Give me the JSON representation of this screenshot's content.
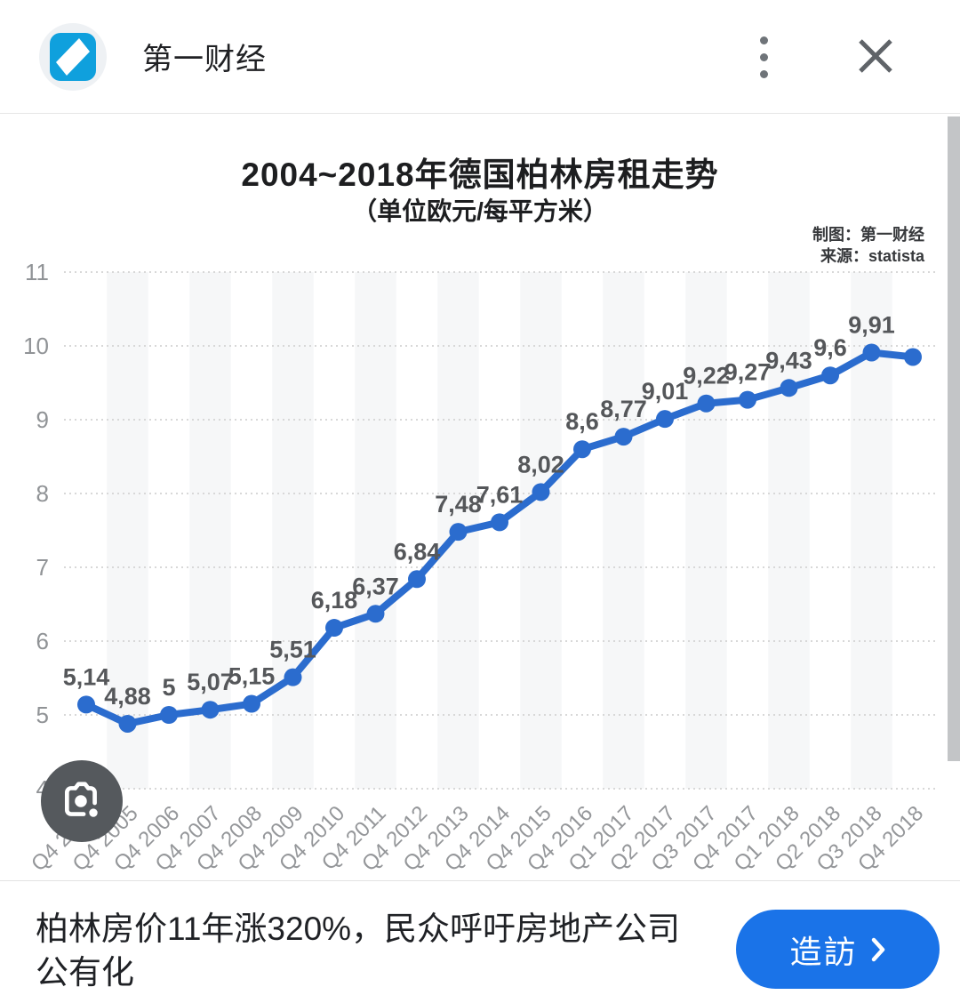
{
  "header": {
    "source_name": "第一财经"
  },
  "chart": {
    "title": "2004~2018年德国柏林房租走势",
    "subtitle": "（单位欧元/每平方米）",
    "credit_line1": "制图：第一财经",
    "credit_line2": "来源：statista"
  },
  "chart_data": {
    "type": "line",
    "title": "2004~2018年德国柏林房租走势",
    "subtitle": "（单位欧元/每平方米）",
    "categories": [
      "Q4 2004",
      "Q4 2005",
      "Q4 2006",
      "Q4 2007",
      "Q4 2008",
      "Q4 2009",
      "Q4 2010",
      "Q4 2011",
      "Q4 2012",
      "Q4 2013",
      "Q4 2014",
      "Q4 2015",
      "Q4 2016",
      "Q1 2017",
      "Q2 2017",
      "Q3 2017",
      "Q4 2017",
      "Q1 2018",
      "Q2 2018",
      "Q3 2018",
      "Q4 2018"
    ],
    "values": [
      5.14,
      4.88,
      5.0,
      5.07,
      5.15,
      5.51,
      6.18,
      6.37,
      6.84,
      7.48,
      7.61,
      8.02,
      8.6,
      8.77,
      9.01,
      9.22,
      9.27,
      9.43,
      9.6,
      9.91,
      9.85
    ],
    "point_labels": [
      "5,14",
      "4,88",
      "5",
      "5,07",
      "5,15",
      "5,51",
      "6,18",
      "6,37",
      "6,84",
      "7,48",
      "7,61",
      "8,02",
      "8,6",
      "8,77",
      "9,01",
      "9,22",
      "9,27",
      "9,43",
      "9,6",
      "9,91",
      ""
    ],
    "y_ticks": [
      4,
      5,
      6,
      7,
      8,
      9,
      10,
      11
    ],
    "ylim": [
      4,
      11
    ],
    "xlabel": "",
    "ylabel": "",
    "grid": "dotted horizontal",
    "legend": "none",
    "line_color": "#2b6cce",
    "point_label_color": "#55575a",
    "tick_label_color": "#909396",
    "band_color": "#f6f7f8"
  },
  "footer": {
    "headline": "柏林房价11年涨320%，民众呼吁房地产公司公有化",
    "visit_label": "造訪",
    "visit_chevron": "›"
  }
}
